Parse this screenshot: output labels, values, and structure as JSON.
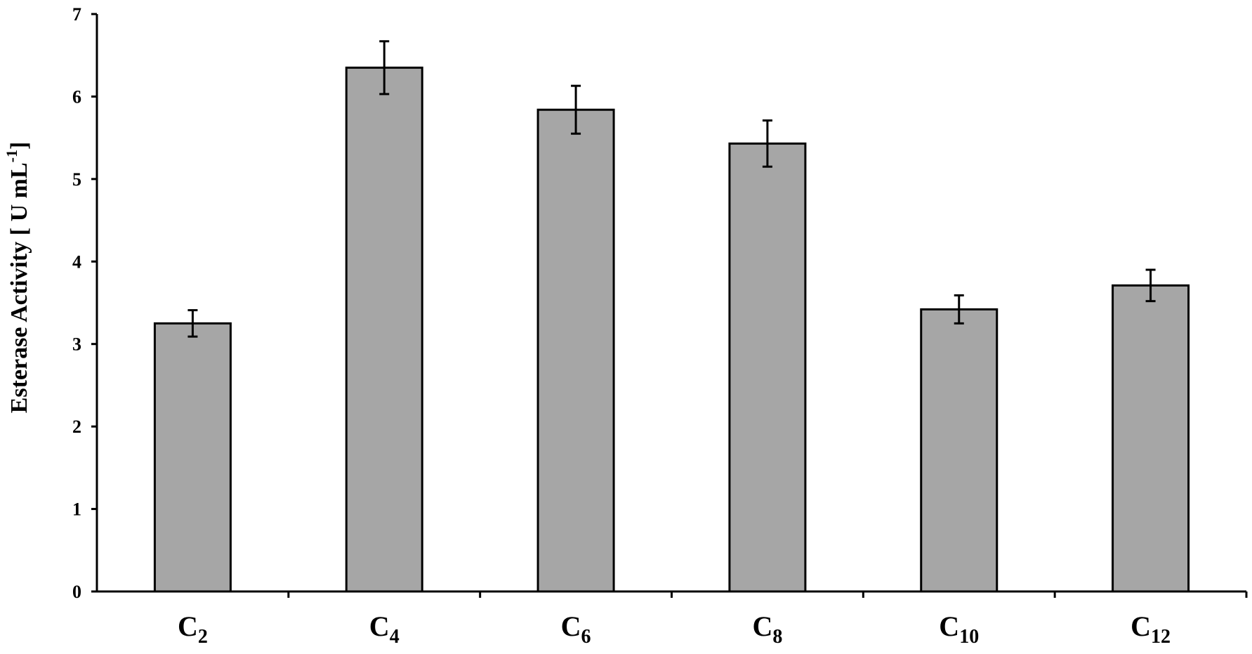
{
  "chart_data": {
    "type": "bar",
    "categories": [
      {
        "base": "C",
        "sub": "2"
      },
      {
        "base": "C",
        "sub": "4"
      },
      {
        "base": "C",
        "sub": "6"
      },
      {
        "base": "C",
        "sub": "8"
      },
      {
        "base": "C",
        "sub": "10"
      },
      {
        "base": "C",
        "sub": "12"
      }
    ],
    "values": [
      3.25,
      6.35,
      5.84,
      5.43,
      3.42,
      3.71
    ],
    "errors": [
      0.16,
      0.32,
      0.29,
      0.28,
      0.17,
      0.19
    ],
    "ylabel": "Esterase Activity [ U mL",
    "ylabel_sup": "-1",
    "ylabel_end": "]",
    "ylim": [
      0,
      7
    ],
    "yticks": [
      0,
      1,
      2,
      3,
      4,
      5,
      6,
      7
    ],
    "bar_color": "#a6a6a6",
    "edge_color": "#000000",
    "grid": false,
    "legend": "none"
  }
}
